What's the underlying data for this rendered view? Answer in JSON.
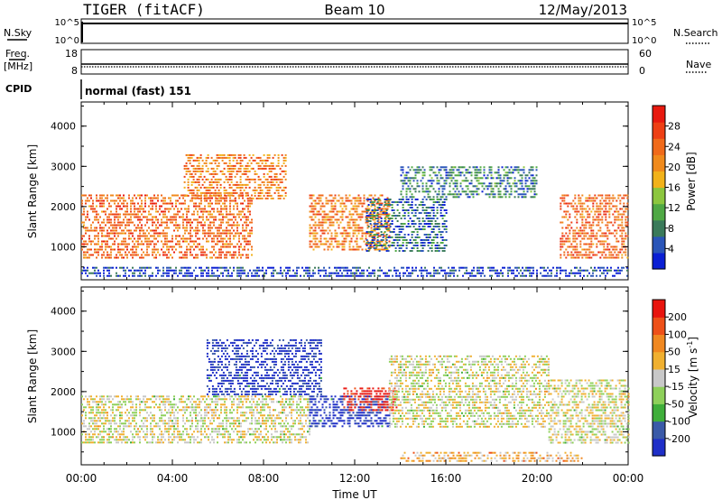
{
  "header": {
    "station": "TIGER (fitACF)",
    "beam": "Beam 10",
    "date": "12/May/2013"
  },
  "aux_panels": {
    "nsky_label": "N.Sky",
    "nsky_ticks": [
      "10^5",
      "10^0"
    ],
    "nsearch_label": "N.Search",
    "nsearch_ticks": [
      "10^5",
      "10^0"
    ],
    "freq_label": "Freq.",
    "freq_unit": "[MHz]",
    "freq_ticks": [
      "18",
      "8"
    ],
    "nave_label": "Nave",
    "nave_ticks": [
      "60",
      "0"
    ],
    "cpid_label": "CPID",
    "cpid_value": "normal (fast) 151"
  },
  "chart_data": [
    {
      "type": "heatmap",
      "panel": "power",
      "ylabel": "Slant Range [km]",
      "yticks": [
        "4000",
        "3000",
        "2000",
        "1000"
      ],
      "ylim": [
        180,
        4600
      ],
      "colorbar_label": "Power [dB]",
      "colorbar_ticks": [
        "28",
        "24",
        "20",
        "16",
        "12",
        "8",
        "4"
      ],
      "colorscale": [
        "#0a1fd4",
        "#2a55b8",
        "#3a7a5a",
        "#4fa844",
        "#8cc63e",
        "#f2b21a",
        "#f08a1c",
        "#f06a1a",
        "#ee3f14",
        "#e8190f"
      ],
      "grid": false,
      "echo_regions": [
        {
          "t0": 0.0,
          "t1": 7.5,
          "r0": 700,
          "r1": 2300,
          "level": 0.75
        },
        {
          "t0": 4.5,
          "t1": 9.0,
          "r0": 2200,
          "r1": 3300,
          "level": 0.7
        },
        {
          "t0": 10.0,
          "t1": 13.5,
          "r0": 900,
          "r1": 2300,
          "level": 0.7
        },
        {
          "t0": 12.5,
          "t1": 16.0,
          "r0": 900,
          "r1": 2200,
          "level": 0.2
        },
        {
          "t0": 14.0,
          "t1": 20.0,
          "r0": 2200,
          "r1": 3000,
          "level": 0.25
        },
        {
          "t0": 21.0,
          "t1": 24.0,
          "r0": 700,
          "r1": 2300,
          "level": 0.75
        },
        {
          "t0": 0.0,
          "t1": 24.0,
          "r0": 250,
          "r1": 500,
          "level": 0.1
        }
      ]
    },
    {
      "type": "heatmap",
      "panel": "velocity",
      "xlabel": "Time UT",
      "xticks": [
        "00:00",
        "04:00",
        "08:00",
        "12:00",
        "16:00",
        "20:00",
        "00:00"
      ],
      "xlim": [
        0,
        24
      ],
      "ylabel": "Slant Range [km]",
      "yticks": [
        "4000",
        "3000",
        "2000",
        "1000"
      ],
      "ylim": [
        180,
        4600
      ],
      "colorbar_label": "Velocity [m s",
      "colorbar_label_sup": "-1",
      "colorbar_label_end": "]",
      "colorbar_ticks": [
        "200",
        "100",
        "50",
        "15",
        "-15",
        "-50",
        "-100",
        "-200"
      ],
      "colorscale": [
        "#1f2fc8",
        "#3a5aa8",
        "#3fae3a",
        "#8ed05a",
        "#c8c8c8",
        "#f0b030",
        "#f08820",
        "#ee5018",
        "#e8140e"
      ],
      "grid": false,
      "echo_regions": [
        {
          "t0": 0.0,
          "t1": 10.0,
          "r0": 700,
          "r1": 1900,
          "level": 0.5
        },
        {
          "t0": 5.5,
          "t1": 10.5,
          "r0": 1900,
          "r1": 3300,
          "level": 0.05
        },
        {
          "t0": 10.0,
          "t1": 13.5,
          "r0": 1100,
          "r1": 1900,
          "level": 0.05
        },
        {
          "t0": 11.5,
          "t1": 13.8,
          "r0": 1500,
          "r1": 2100,
          "level": 0.95
        },
        {
          "t0": 13.5,
          "t1": 20.5,
          "r0": 1100,
          "r1": 2900,
          "level": 0.5
        },
        {
          "t0": 20.5,
          "t1": 24.0,
          "r0": 700,
          "r1": 2300,
          "level": 0.5
        },
        {
          "t0": 14.0,
          "t1": 22.0,
          "r0": 250,
          "r1": 500,
          "level": 0.62
        }
      ]
    }
  ]
}
